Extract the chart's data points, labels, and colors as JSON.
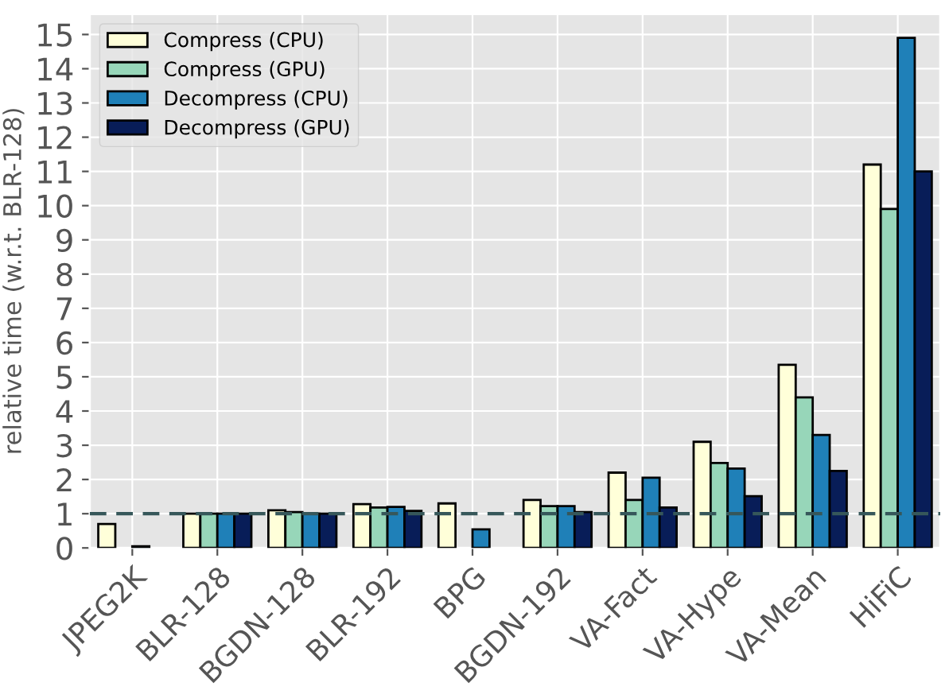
{
  "chart_data": {
    "type": "bar",
    "ylabel": "relative time (w.r.t. BLR-128)",
    "categories": [
      "JPEG2K",
      "BLR-128",
      "BGDN-128",
      "BLR-192",
      "BPG",
      "BGDN-192",
      "VA-Fact",
      "VA-Hype",
      "VA-Mean",
      "HiFiC"
    ],
    "series": [
      {
        "name": "Compress (CPU)",
        "color": "#ffffd9",
        "values": [
          0.7,
          1.0,
          1.1,
          1.28,
          1.3,
          1.4,
          2.2,
          3.1,
          5.35,
          11.2
        ]
      },
      {
        "name": "Compress (GPU)",
        "color": "#97d6b9",
        "values": [
          null,
          1.0,
          1.05,
          1.18,
          null,
          1.22,
          1.4,
          2.48,
          4.4,
          9.9
        ]
      },
      {
        "name": "Decompress (CPU)",
        "color": "#1f80b8",
        "values": [
          0.05,
          1.0,
          1.0,
          1.2,
          0.54,
          1.22,
          2.05,
          2.32,
          3.3,
          14.9
        ]
      },
      {
        "name": "Decompress (GPU)",
        "color": "#081d58",
        "values": [
          null,
          1.0,
          1.0,
          1.08,
          null,
          1.05,
          1.18,
          1.51,
          2.25,
          11.0
        ]
      }
    ],
    "ylim": [
      0,
      15.6
    ],
    "yticks": [
      0,
      1,
      2,
      3,
      4,
      5,
      6,
      7,
      8,
      9,
      10,
      11,
      12,
      13,
      14,
      15
    ],
    "ref_lines": [
      {
        "axis": "y",
        "value": 1,
        "color": "#36575a",
        "line_style": "dashed"
      }
    ],
    "grid": true,
    "legend": "top left"
  }
}
